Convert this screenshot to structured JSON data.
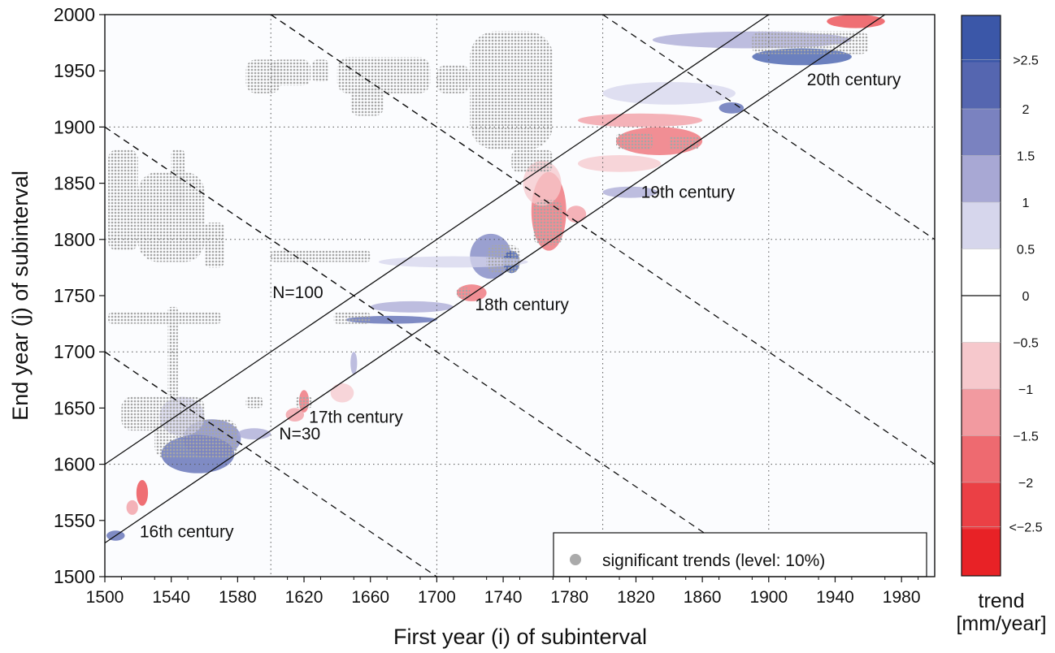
{
  "chart_data": {
    "type": "heatmap",
    "xlabel": "First year (i) of subinterval",
    "ylabel": "End year (j) of subinterval",
    "xlim": [
      1500,
      2000
    ],
    "ylim": [
      1500,
      2000
    ],
    "x_ticks": [
      1500,
      1540,
      1580,
      1620,
      1660,
      1700,
      1740,
      1780,
      1820,
      1860,
      1900,
      1940,
      1980
    ],
    "y_ticks": [
      1500,
      1550,
      1600,
      1650,
      1700,
      1750,
      1800,
      1850,
      1900,
      1950,
      2000
    ],
    "grid": "dotted at 100-year intervals",
    "colorbar": {
      "title_line1": "trend",
      "title_line2": "[mm/year]",
      "tick_labels": [
        ">2.5",
        "2",
        "1.5",
        "1",
        "0.5",
        "0",
        "−0.5",
        "−1",
        "−1.5",
        "−2",
        "<−2.5"
      ],
      "bands": [
        {
          "range": [
            2.5,
            3.0
          ],
          "color": "#3b57a8"
        },
        {
          "range": [
            2.0,
            2.5
          ],
          "color": "#5566b0"
        },
        {
          "range": [
            1.5,
            2.0
          ],
          "color": "#7a82c0"
        },
        {
          "range": [
            1.0,
            1.5
          ],
          "color": "#a8a8d4"
        },
        {
          "range": [
            0.5,
            1.0
          ],
          "color": "#d6d6ec"
        },
        {
          "range": [
            0.0,
            0.5
          ],
          "color": "#ffffff"
        },
        {
          "range": [
            -0.5,
            0.0
          ],
          "color": "#ffffff"
        },
        {
          "range": [
            -1.0,
            -0.5
          ],
          "color": "#f6c8cc"
        },
        {
          "range": [
            -1.5,
            -1.0
          ],
          "color": "#f29aa0"
        },
        {
          "range": [
            -2.0,
            -1.5
          ],
          "color": "#ee6a70"
        },
        {
          "range": [
            -2.5,
            -2.0
          ],
          "color": "#eb4045"
        },
        {
          "range": [
            -3.0,
            -2.5
          ],
          "color": "#e82226"
        }
      ]
    },
    "reference_lines": [
      {
        "label": "N=30",
        "offset_years": 30,
        "style": "solid"
      },
      {
        "label": "N=100",
        "offset_years": 100,
        "style": "solid"
      }
    ],
    "century_lines": [
      {
        "x0": 1500,
        "y0": 1700,
        "x1": 1600,
        "y1": 1600
      },
      {
        "x0": 1500,
        "y0": 1900,
        "x1": 1700,
        "y1": 1700
      },
      {
        "x0": 1600,
        "y0": 2000,
        "x1": 1800,
        "y1": 1800
      },
      {
        "x0": 1500,
        "y0": 1700,
        "x1": 1700,
        "y1": 1500
      },
      {
        "x0": 1500,
        "y0": 1900,
        "x1": 1900,
        "y1": 1500
      },
      {
        "x0": 1600,
        "y0": 2000,
        "x1": 2000,
        "y1": 1600
      },
      {
        "x0": 1800,
        "y0": 2000,
        "x1": 2000,
        "y1": 1800
      }
    ],
    "century_labels": [
      {
        "text": "16th century",
        "x": 1521,
        "y": 1535
      },
      {
        "text": "17th century",
        "x": 1623,
        "y": 1637
      },
      {
        "text": "18th century",
        "x": 1723,
        "y": 1737
      },
      {
        "text": "19th century",
        "x": 1823,
        "y": 1837
      },
      {
        "text": "20th century",
        "x": 1923,
        "y": 1937
      }
    ],
    "line_labels": [
      {
        "text": "N=100",
        "x": 1601,
        "y": 1748
      },
      {
        "text": "N=30",
        "x": 1605,
        "y": 1622
      }
    ],
    "legend": {
      "text": "significant trends (level: 10%)",
      "position": "bottom-right",
      "marker_color": "#aaaaaa"
    },
    "trend_patches": [
      {
        "x0": 1501,
        "x1": 1512,
        "y0": 1532,
        "y1": 1541,
        "color": "#5566b0"
      },
      {
        "x0": 1519,
        "x1": 1526,
        "y0": 1563,
        "y1": 1586,
        "color": "#eb4045"
      },
      {
        "x0": 1513,
        "x1": 1520,
        "y0": 1555,
        "y1": 1568,
        "color": "#f29aa0"
      },
      {
        "x0": 1534,
        "x1": 1578,
        "y0": 1592,
        "y1": 1626,
        "color": "#5566b0"
      },
      {
        "x0": 1547,
        "x1": 1582,
        "y0": 1606,
        "y1": 1640,
        "color": "#7a82c0"
      },
      {
        "x0": 1533,
        "x1": 1560,
        "y0": 1625,
        "y1": 1660,
        "color": "#d6d6ec"
      },
      {
        "x0": 1580,
        "x1": 1600,
        "y0": 1622,
        "y1": 1632,
        "color": "#a8a8d4"
      },
      {
        "x0": 1617,
        "x1": 1623,
        "y0": 1646,
        "y1": 1666,
        "color": "#ee6a70"
      },
      {
        "x0": 1609,
        "x1": 1620,
        "y0": 1638,
        "y1": 1650,
        "color": "#f29aa0"
      },
      {
        "x0": 1636,
        "x1": 1650,
        "y0": 1655,
        "y1": 1672,
        "color": "#f6c8cc"
      },
      {
        "x0": 1648,
        "x1": 1652,
        "y0": 1680,
        "y1": 1700,
        "color": "#a8a8d4"
      },
      {
        "x0": 1645,
        "x1": 1700,
        "y0": 1725,
        "y1": 1732,
        "color": "#5566b0"
      },
      {
        "x0": 1660,
        "x1": 1710,
        "y0": 1735,
        "y1": 1745,
        "color": "#a8a8d4"
      },
      {
        "x0": 1712,
        "x1": 1730,
        "y0": 1745,
        "y1": 1760,
        "color": "#ee6a70"
      },
      {
        "x0": 1720,
        "x1": 1745,
        "y0": 1765,
        "y1": 1805,
        "color": "#7a82c0"
      },
      {
        "x0": 1740,
        "x1": 1750,
        "y0": 1770,
        "y1": 1790,
        "color": "#3b57a8"
      },
      {
        "x0": 1665,
        "x1": 1755,
        "y0": 1775,
        "y1": 1785,
        "color": "#d6d6ec"
      },
      {
        "x0": 1757,
        "x1": 1778,
        "y0": 1790,
        "y1": 1860,
        "color": "#ee6a70"
      },
      {
        "x0": 1752,
        "x1": 1775,
        "y0": 1830,
        "y1": 1870,
        "color": "#f6c8cc"
      },
      {
        "x0": 1778,
        "x1": 1790,
        "y0": 1815,
        "y1": 1830,
        "color": "#f29aa0"
      },
      {
        "x0": 1800,
        "x1": 1833,
        "y0": 1837,
        "y1": 1847,
        "color": "#a8a8d4"
      },
      {
        "x0": 1808,
        "x1": 1860,
        "y0": 1875,
        "y1": 1900,
        "color": "#ee6a70"
      },
      {
        "x0": 1785,
        "x1": 1835,
        "y0": 1860,
        "y1": 1875,
        "color": "#f6c8cc"
      },
      {
        "x0": 1785,
        "x1": 1860,
        "y0": 1900,
        "y1": 1912,
        "color": "#f29aa0"
      },
      {
        "x0": 1870,
        "x1": 1885,
        "y0": 1912,
        "y1": 1922,
        "color": "#5566b0"
      },
      {
        "x0": 1800,
        "x1": 1880,
        "y0": 1920,
        "y1": 1940,
        "color": "#d6d6ec"
      },
      {
        "x0": 1890,
        "x1": 1950,
        "y0": 1955,
        "y1": 1970,
        "color": "#3b57a8"
      },
      {
        "x0": 1830,
        "x1": 1950,
        "y0": 1970,
        "y1": 1985,
        "color": "#a8a8d4"
      },
      {
        "x0": 1935,
        "x1": 1970,
        "y0": 1988,
        "y1": 2000,
        "color": "#eb4045"
      }
    ],
    "significance_regions": [
      {
        "x0": 1502,
        "x1": 1520,
        "y0": 1790,
        "y1": 1880
      },
      {
        "x0": 1520,
        "x1": 1560,
        "y0": 1780,
        "y1": 1860
      },
      {
        "x0": 1540,
        "x1": 1548,
        "y0": 1830,
        "y1": 1880
      },
      {
        "x0": 1560,
        "x1": 1572,
        "y0": 1775,
        "y1": 1815
      },
      {
        "x0": 1502,
        "x1": 1570,
        "y0": 1725,
        "y1": 1735
      },
      {
        "x0": 1538,
        "x1": 1544,
        "y0": 1640,
        "y1": 1740
      },
      {
        "x0": 1510,
        "x1": 1560,
        "y0": 1630,
        "y1": 1660
      },
      {
        "x0": 1530,
        "x1": 1580,
        "y0": 1605,
        "y1": 1640
      },
      {
        "x0": 1585,
        "x1": 1606,
        "y0": 1930,
        "y1": 1960
      },
      {
        "x0": 1600,
        "x1": 1624,
        "y0": 1937,
        "y1": 1960
      },
      {
        "x0": 1625,
        "x1": 1635,
        "y0": 1940,
        "y1": 1960
      },
      {
        "x0": 1640,
        "x1": 1696,
        "y0": 1930,
        "y1": 1962
      },
      {
        "x0": 1648,
        "x1": 1668,
        "y0": 1910,
        "y1": 1935
      },
      {
        "x0": 1720,
        "x1": 1770,
        "y0": 1880,
        "y1": 1985
      },
      {
        "x0": 1745,
        "x1": 1770,
        "y0": 1860,
        "y1": 1880
      },
      {
        "x0": 1700,
        "x1": 1720,
        "y0": 1930,
        "y1": 1955
      },
      {
        "x0": 1730,
        "x1": 1750,
        "y0": 1770,
        "y1": 1795
      },
      {
        "x0": 1758,
        "x1": 1776,
        "y0": 1795,
        "y1": 1835
      },
      {
        "x0": 1600,
        "x1": 1660,
        "y0": 1780,
        "y1": 1790
      },
      {
        "x0": 1638,
        "x1": 1660,
        "y0": 1725,
        "y1": 1735
      },
      {
        "x0": 1712,
        "x1": 1720,
        "y0": 1748,
        "y1": 1757
      },
      {
        "x0": 1808,
        "x1": 1830,
        "y0": 1880,
        "y1": 1895
      },
      {
        "x0": 1840,
        "x1": 1858,
        "y0": 1880,
        "y1": 1892
      },
      {
        "x0": 1890,
        "x1": 1960,
        "y0": 1965,
        "y1": 1985
      },
      {
        "x0": 1615,
        "x1": 1625,
        "y0": 1650,
        "y1": 1660
      },
      {
        "x0": 1585,
        "x1": 1595,
        "y0": 1650,
        "y1": 1660
      }
    ]
  }
}
